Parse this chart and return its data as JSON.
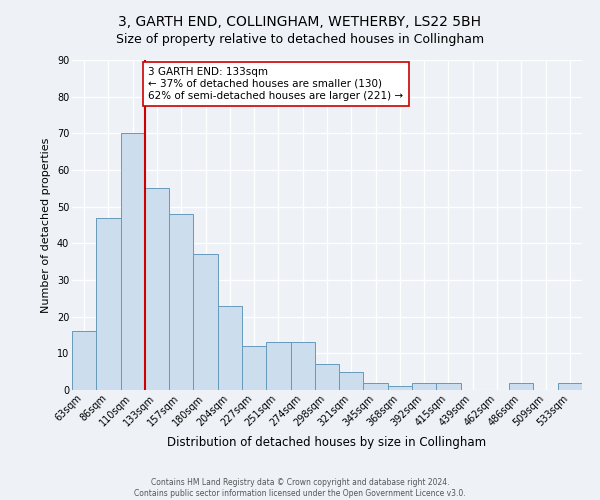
{
  "title": "3, GARTH END, COLLINGHAM, WETHERBY, LS22 5BH",
  "subtitle": "Size of property relative to detached houses in Collingham",
  "xlabel": "Distribution of detached houses by size in Collingham",
  "ylabel": "Number of detached properties",
  "bin_labels": [
    "63sqm",
    "86sqm",
    "110sqm",
    "133sqm",
    "157sqm",
    "180sqm",
    "204sqm",
    "227sqm",
    "251sqm",
    "274sqm",
    "298sqm",
    "321sqm",
    "345sqm",
    "368sqm",
    "392sqm",
    "415sqm",
    "439sqm",
    "462sqm",
    "486sqm",
    "509sqm",
    "533sqm"
  ],
  "bar_values": [
    16,
    47,
    70,
    55,
    48,
    37,
    23,
    12,
    13,
    13,
    7,
    5,
    2,
    1,
    2,
    2,
    0,
    0,
    2,
    0,
    2
  ],
  "bar_color": "#ccdded",
  "bar_edge_color": "#6699bb",
  "vline_index": 3,
  "vline_color": "#cc0000",
  "annotation_title": "3 GARTH END: 133sqm",
  "annotation_line1": "← 37% of detached houses are smaller (130)",
  "annotation_line2": "62% of semi-detached houses are larger (221) →",
  "annotation_box_facecolor": "#ffffff",
  "annotation_box_edgecolor": "#cc0000",
  "ylim": [
    0,
    90
  ],
  "yticks": [
    0,
    10,
    20,
    30,
    40,
    50,
    60,
    70,
    80,
    90
  ],
  "footer_line1": "Contains HM Land Registry data © Crown copyright and database right 2024.",
  "footer_line2": "Contains public sector information licensed under the Open Government Licence v3.0.",
  "bg_color": "#eef2f7",
  "plot_bg_color": "#eef2f7",
  "grid_color": "#ffffff",
  "title_fontsize": 10,
  "subtitle_fontsize": 9,
  "xlabel_fontsize": 8.5,
  "ylabel_fontsize": 8,
  "tick_fontsize": 7,
  "footer_fontsize": 5.5
}
